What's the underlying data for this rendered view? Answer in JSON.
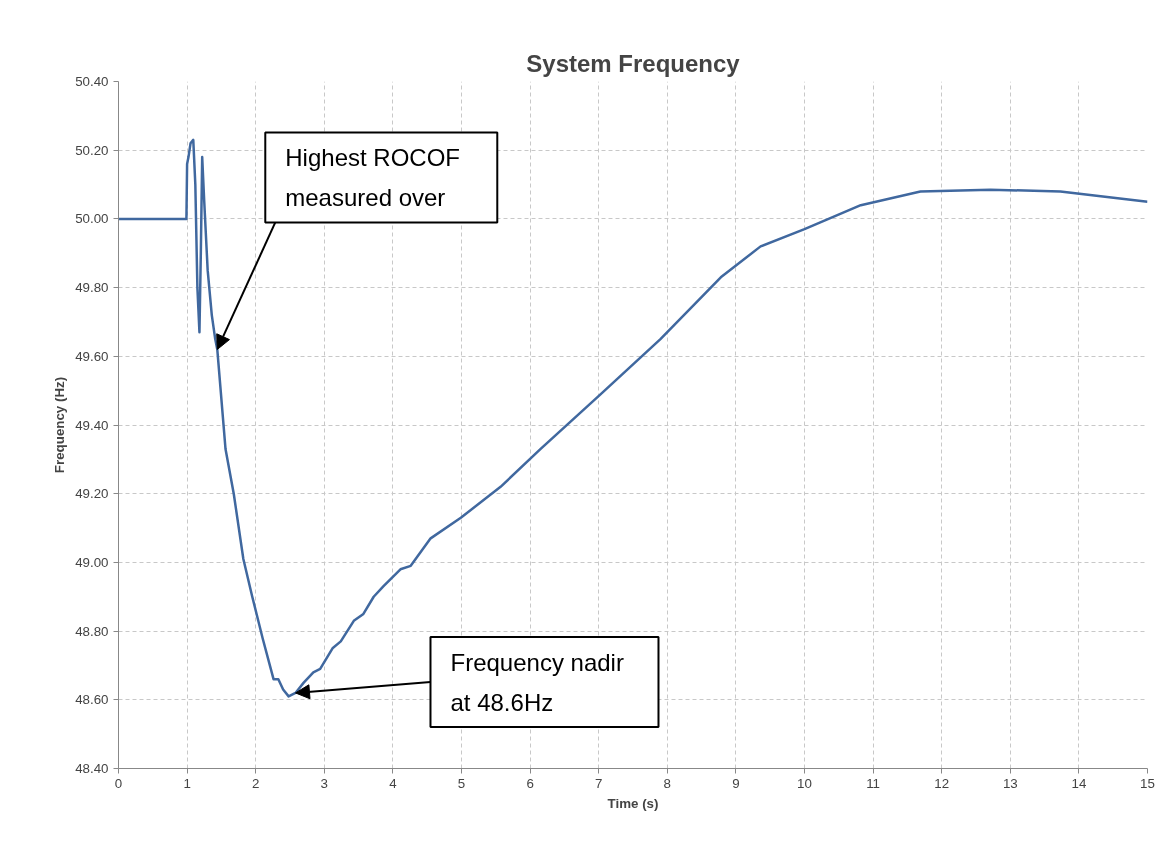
{
  "chart_data": {
    "type": "line",
    "title": "System Frequency",
    "xlabel": "Time (s)",
    "ylabel": "Frequency (Hz)",
    "series": [
      {
        "color": "#40689f",
        "x": [
          0,
          0.5,
          0.98,
          0.99,
          1.0,
          1.02,
          1.05,
          1.09,
          1.12,
          1.15,
          1.18,
          1.2,
          1.22,
          1.25,
          1.3,
          1.36,
          1.41,
          1.44,
          1.56,
          1.68,
          1.82,
          1.95,
          2.1,
          2.26,
          2.33,
          2.4,
          2.48,
          2.58,
          2.7,
          2.84,
          2.94,
          3.12,
          3.24,
          3.43,
          3.57,
          3.72,
          3.86,
          4.11,
          4.26,
          4.55,
          4.99,
          5.57,
          6.15,
          7.03,
          7.9,
          8.78,
          9.36,
          10.0,
          10.82,
          11.69,
          12.71,
          13.73,
          15.0
        ],
        "values": [
          50.0,
          50.0,
          50.0,
          50.0,
          50.16,
          50.18,
          50.22,
          50.23,
          50.1,
          49.8,
          49.67,
          49.9,
          50.18,
          50.05,
          49.85,
          49.72,
          49.65,
          49.62,
          49.33,
          49.2,
          49.01,
          48.9,
          48.78,
          48.66,
          48.66,
          48.63,
          48.61,
          48.62,
          48.65,
          48.68,
          48.69,
          48.75,
          48.77,
          48.83,
          48.85,
          48.9,
          48.93,
          48.98,
          48.99,
          49.07,
          49.13,
          49.22,
          49.33,
          49.49,
          49.65,
          49.83,
          49.92,
          49.97,
          50.04,
          50.08,
          50.085,
          50.08,
          50.05
        ]
      }
    ],
    "xlim": [
      0,
      15
    ],
    "xticks": [
      0,
      1,
      2,
      3,
      4,
      5,
      6,
      7,
      8,
      9,
      10,
      11,
      12,
      13,
      14,
      15
    ],
    "ylim": [
      48.4,
      50.4
    ],
    "yticks": [
      {
        "value": 48.4,
        "label": "48.40"
      },
      {
        "value": 48.6,
        "label": "48.60"
      },
      {
        "value": 48.8,
        "label": "48.80"
      },
      {
        "value": 49.0,
        "label": "49.00"
      },
      {
        "value": 49.2,
        "label": "49.20"
      },
      {
        "value": 49.4,
        "label": "49.40"
      },
      {
        "value": 49.6,
        "label": "49.60"
      },
      {
        "value": 49.8,
        "label": "49.80"
      },
      {
        "value": 50.0,
        "label": "50.00"
      },
      {
        "value": 50.2,
        "label": "50.20"
      },
      {
        "value": 50.4,
        "label": "50.40"
      }
    ],
    "grid": true,
    "marker": "none",
    "line_style": "solid",
    "annotations": [
      {
        "text": "Highest ROCOF measured over",
        "x": 1.44,
        "y": 49.62
      },
      {
        "text": "Frequency nadir at 48.6Hz",
        "x": 2.58,
        "y": 48.62
      }
    ]
  }
}
